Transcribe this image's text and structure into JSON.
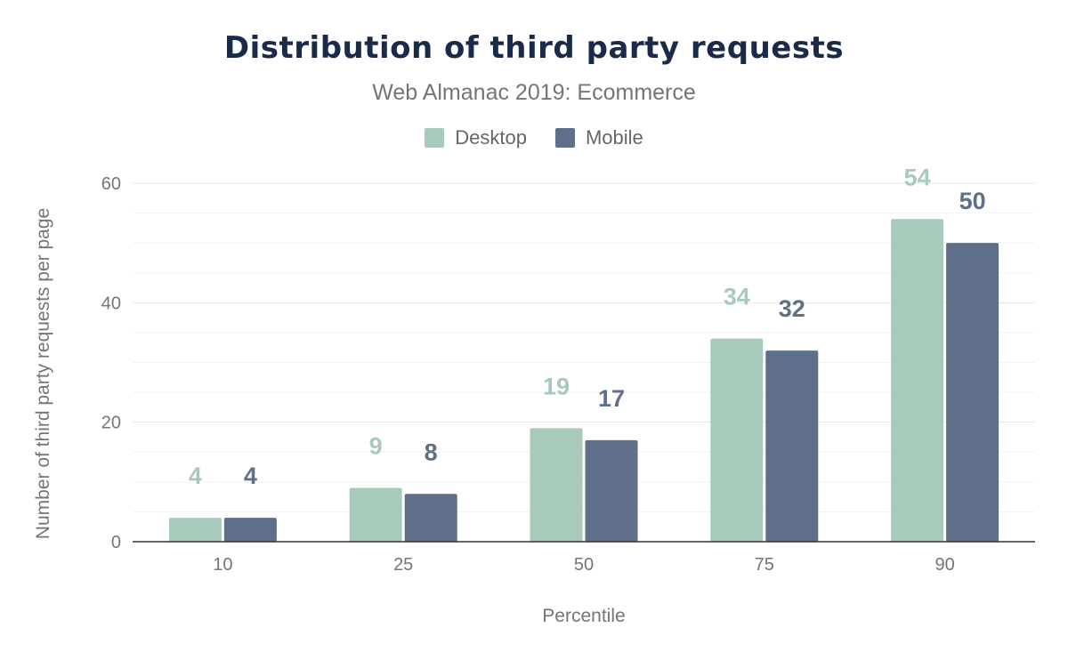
{
  "chart_data": {
    "type": "bar",
    "title": "Distribution of third party requests",
    "subtitle": "Web Almanac 2019: Ecommerce",
    "xlabel": "Percentile",
    "ylabel": "Number of third party requests per page",
    "categories": [
      "10",
      "25",
      "50",
      "75",
      "90"
    ],
    "series": [
      {
        "name": "Desktop",
        "color": "#a8cabb",
        "values": [
          4,
          9,
          19,
          34,
          54
        ]
      },
      {
        "name": "Mobile",
        "color": "#5f6e89",
        "values": [
          4,
          8,
          17,
          32,
          50
        ]
      }
    ],
    "ylim": [
      0,
      60
    ],
    "yticks": [
      "0",
      "20",
      "40",
      "60"
    ],
    "grid": true,
    "legend": "top"
  }
}
